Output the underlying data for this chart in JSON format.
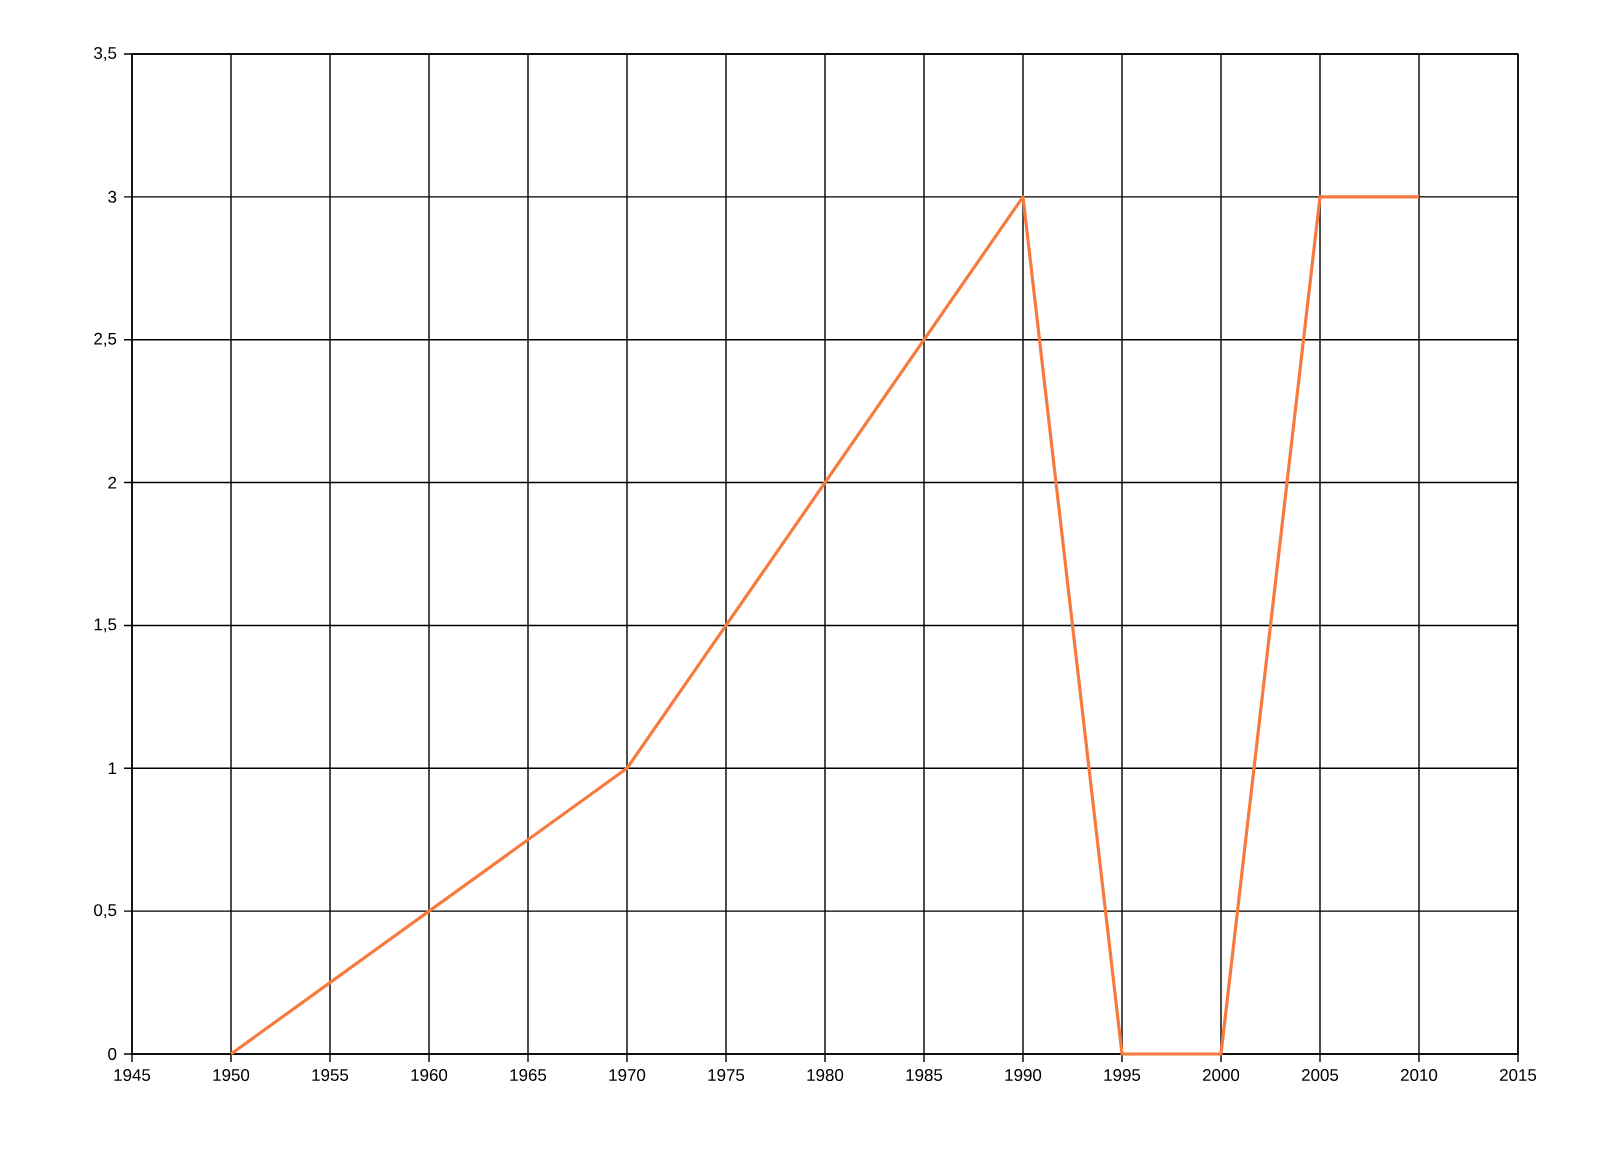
{
  "chart_data": {
    "type": "line",
    "x": [
      1950,
      1955,
      1960,
      1965,
      1970,
      1975,
      1980,
      1985,
      1990,
      1995,
      2000,
      2005,
      2010
    ],
    "series": [
      {
        "color": "#f77b3f",
        "values": [
          0,
          0.25,
          0.5,
          0.75,
          1,
          1.5,
          2,
          2.5,
          3,
          0,
          0,
          3,
          3
        ]
      }
    ],
    "xlim": [
      1945,
      2015
    ],
    "xticks": [
      1945,
      1950,
      1955,
      1960,
      1965,
      1970,
      1975,
      1980,
      1985,
      1990,
      1995,
      2000,
      2005,
      2010,
      2015
    ],
    "ylim": [
      0,
      3.5
    ],
    "yticks": [
      0,
      {
        "value": 0.5,
        "label": "0,5"
      },
      1,
      {
        "value": 1.5,
        "label": "1,5"
      },
      2,
      {
        "value": 2.5,
        "label": "2,5"
      },
      3,
      {
        "value": 3.5,
        "label": "3,5"
      }
    ],
    "grid": true,
    "line_style": "solid"
  }
}
